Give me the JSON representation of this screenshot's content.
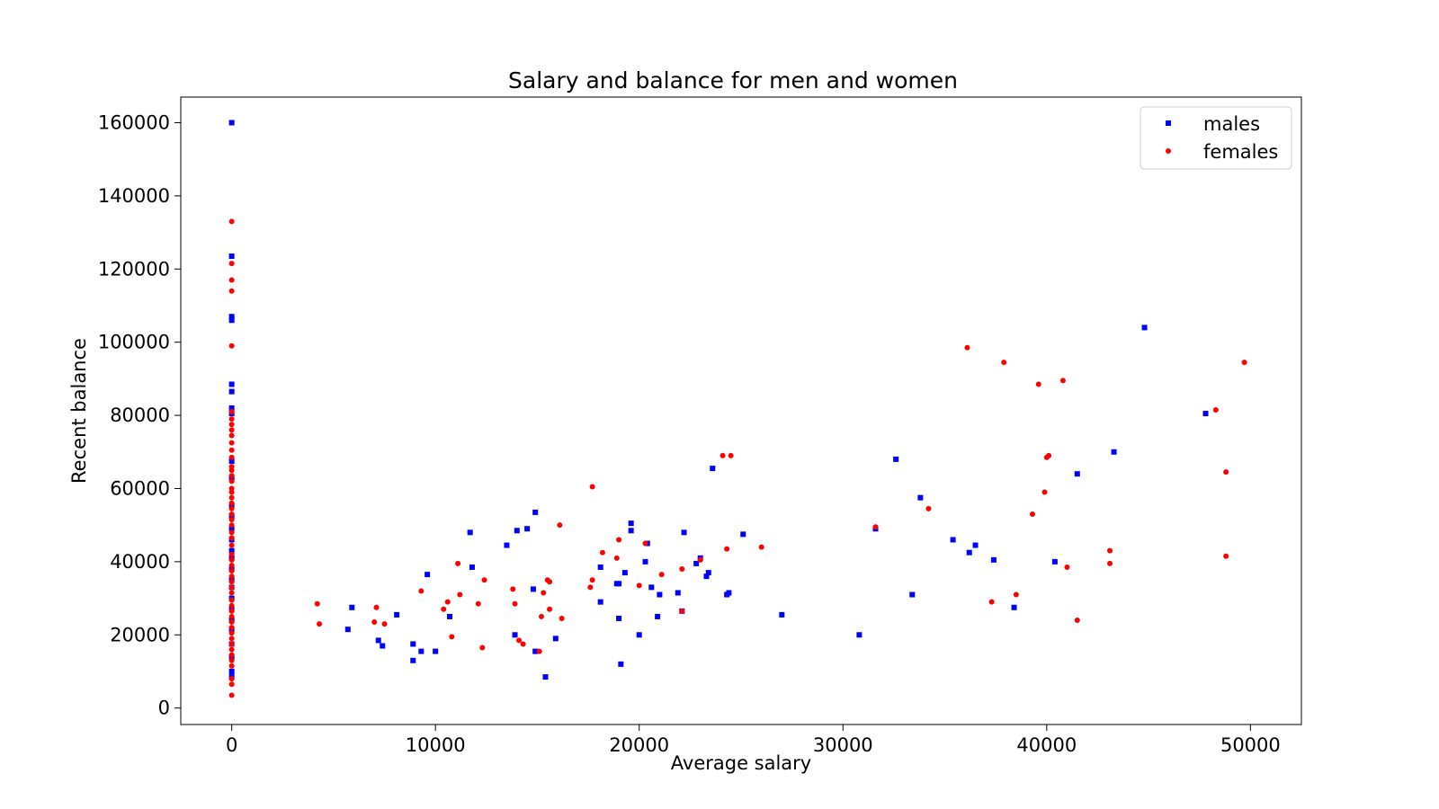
{
  "chart_data": {
    "type": "scatter",
    "title": "Salary and balance for men and women",
    "xlabel": "Average salary",
    "ylabel": "Recent balance",
    "xlim": [
      -2500,
      52500
    ],
    "ylim": [
      -4500,
      167000
    ],
    "xticks": [
      0,
      10000,
      20000,
      30000,
      40000,
      50000
    ],
    "yticks": [
      0,
      20000,
      40000,
      60000,
      80000,
      100000,
      120000,
      140000,
      160000
    ],
    "legend_position": "top-right",
    "grid": false,
    "series": [
      {
        "name": "males",
        "marker": "square",
        "color": "#0000ff",
        "points": [
          [
            0,
            160000
          ],
          [
            0,
            123500
          ],
          [
            0,
            107000
          ],
          [
            0,
            106000
          ],
          [
            0,
            88500
          ],
          [
            0,
            86500
          ],
          [
            0,
            82000
          ],
          [
            0,
            80500
          ],
          [
            0,
            67500
          ],
          [
            0,
            63000
          ],
          [
            0,
            55500
          ],
          [
            0,
            52500
          ],
          [
            0,
            49000
          ],
          [
            0,
            46000
          ],
          [
            0,
            43000
          ],
          [
            0,
            41000
          ],
          [
            0,
            38000
          ],
          [
            0,
            35000
          ],
          [
            0,
            33000
          ],
          [
            0,
            30000
          ],
          [
            0,
            27000
          ],
          [
            0,
            24000
          ],
          [
            0,
            21500
          ],
          [
            0,
            17500
          ],
          [
            0,
            14000
          ],
          [
            0,
            10000
          ],
          [
            0,
            8500
          ],
          [
            5700,
            21500
          ],
          [
            5900,
            27500
          ],
          [
            7200,
            18500
          ],
          [
            7400,
            17000
          ],
          [
            8100,
            25500
          ],
          [
            8900,
            13000
          ],
          [
            8900,
            17500
          ],
          [
            9300,
            15500
          ],
          [
            9600,
            36500
          ],
          [
            10000,
            15500
          ],
          [
            10700,
            25000
          ],
          [
            11700,
            48000
          ],
          [
            11800,
            38500
          ],
          [
            13500,
            44500
          ],
          [
            13900,
            20000
          ],
          [
            14000,
            48500
          ],
          [
            14500,
            49000
          ],
          [
            14800,
            32500
          ],
          [
            14900,
            15500
          ],
          [
            14900,
            53500
          ],
          [
            15400,
            8500
          ],
          [
            15900,
            19000
          ],
          [
            18100,
            29000
          ],
          [
            18100,
            38500
          ],
          [
            18900,
            34000
          ],
          [
            19000,
            24500
          ],
          [
            19000,
            34000
          ],
          [
            19100,
            12000
          ],
          [
            19300,
            37000
          ],
          [
            19600,
            48500
          ],
          [
            19600,
            50500
          ],
          [
            20000,
            20000
          ],
          [
            20300,
            40000
          ],
          [
            20400,
            45000
          ],
          [
            20600,
            33000
          ],
          [
            20900,
            25000
          ],
          [
            21000,
            31000
          ],
          [
            21900,
            31500
          ],
          [
            22100,
            26500
          ],
          [
            22200,
            48000
          ],
          [
            22800,
            39500
          ],
          [
            23000,
            41000
          ],
          [
            23300,
            36000
          ],
          [
            23400,
            37000
          ],
          [
            23600,
            65500
          ],
          [
            24300,
            31000
          ],
          [
            24400,
            31500
          ],
          [
            25100,
            47500
          ],
          [
            27000,
            25500
          ],
          [
            30800,
            20000
          ],
          [
            31600,
            49000
          ],
          [
            32600,
            68000
          ],
          [
            33400,
            31000
          ],
          [
            33800,
            57500
          ],
          [
            35400,
            46000
          ],
          [
            36200,
            42500
          ],
          [
            36500,
            44500
          ],
          [
            37400,
            40500
          ],
          [
            38400,
            27500
          ],
          [
            40400,
            40000
          ],
          [
            41500,
            64000
          ],
          [
            43300,
            70000
          ],
          [
            44800,
            104000
          ],
          [
            47800,
            80500
          ]
        ]
      },
      {
        "name": "females",
        "marker": "circle",
        "color": "#ff0000",
        "points": [
          [
            0,
            133000
          ],
          [
            0,
            121500
          ],
          [
            0,
            117000
          ],
          [
            0,
            114000
          ],
          [
            0,
            99000
          ],
          [
            0,
            81000
          ],
          [
            0,
            79000
          ],
          [
            0,
            77500
          ],
          [
            0,
            76000
          ],
          [
            0,
            74500
          ],
          [
            0,
            72500
          ],
          [
            0,
            70500
          ],
          [
            0,
            68500
          ],
          [
            0,
            66000
          ],
          [
            0,
            65000
          ],
          [
            0,
            63500
          ],
          [
            0,
            62000
          ],
          [
            0,
            60000
          ],
          [
            0,
            59000
          ],
          [
            0,
            57500
          ],
          [
            0,
            56000
          ],
          [
            0,
            54500
          ],
          [
            0,
            53000
          ],
          [
            0,
            51500
          ],
          [
            0,
            50000
          ],
          [
            0,
            48000
          ],
          [
            0,
            46500
          ],
          [
            0,
            44500
          ],
          [
            0,
            42000
          ],
          [
            0,
            40500
          ],
          [
            0,
            39000
          ],
          [
            0,
            37500
          ],
          [
            0,
            36000
          ],
          [
            0,
            34500
          ],
          [
            0,
            33000
          ],
          [
            0,
            31500
          ],
          [
            0,
            29500
          ],
          [
            0,
            28000
          ],
          [
            0,
            26500
          ],
          [
            0,
            25000
          ],
          [
            0,
            23500
          ],
          [
            0,
            22000
          ],
          [
            0,
            20500
          ],
          [
            0,
            19000
          ],
          [
            0,
            17500
          ],
          [
            0,
            16000
          ],
          [
            0,
            14500
          ],
          [
            0,
            13000
          ],
          [
            0,
            11500
          ],
          [
            0,
            8000
          ],
          [
            0,
            6500
          ],
          [
            0,
            3500
          ],
          [
            4200,
            28500
          ],
          [
            4300,
            23000
          ],
          [
            7000,
            23500
          ],
          [
            7100,
            27500
          ],
          [
            7500,
            23000
          ],
          [
            9300,
            32000
          ],
          [
            10400,
            27000
          ],
          [
            10600,
            29000
          ],
          [
            10800,
            19500
          ],
          [
            11100,
            39500
          ],
          [
            11200,
            31000
          ],
          [
            12100,
            28500
          ],
          [
            12300,
            16500
          ],
          [
            12400,
            35000
          ],
          [
            13800,
            32500
          ],
          [
            13900,
            28500
          ],
          [
            14100,
            18500
          ],
          [
            14300,
            17500
          ],
          [
            15100,
            15500
          ],
          [
            15200,
            25000
          ],
          [
            15300,
            31500
          ],
          [
            15500,
            35000
          ],
          [
            15600,
            34500
          ],
          [
            15600,
            27000
          ],
          [
            16100,
            50000
          ],
          [
            16200,
            24500
          ],
          [
            17600,
            33000
          ],
          [
            17700,
            35000
          ],
          [
            17700,
            60500
          ],
          [
            18200,
            42500
          ],
          [
            18900,
            41000
          ],
          [
            19000,
            46000
          ],
          [
            20000,
            33500
          ],
          [
            20300,
            45000
          ],
          [
            21100,
            36500
          ],
          [
            22100,
            38000
          ],
          [
            22100,
            26500
          ],
          [
            23000,
            40500
          ],
          [
            24100,
            69000
          ],
          [
            24300,
            43500
          ],
          [
            24500,
            69000
          ],
          [
            26000,
            44000
          ],
          [
            31600,
            49500
          ],
          [
            34200,
            54500
          ],
          [
            36100,
            98500
          ],
          [
            37300,
            29000
          ],
          [
            37900,
            94500
          ],
          [
            38500,
            31000
          ],
          [
            39300,
            53000
          ],
          [
            39600,
            88500
          ],
          [
            39900,
            59000
          ],
          [
            40000,
            68500
          ],
          [
            40100,
            69000
          ],
          [
            40800,
            89500
          ],
          [
            41000,
            38500
          ],
          [
            41500,
            24000
          ],
          [
            43100,
            43000
          ],
          [
            43100,
            39500
          ],
          [
            48300,
            81500
          ],
          [
            48800,
            64500
          ],
          [
            48800,
            41500
          ],
          [
            49700,
            94500
          ]
        ]
      }
    ]
  }
}
